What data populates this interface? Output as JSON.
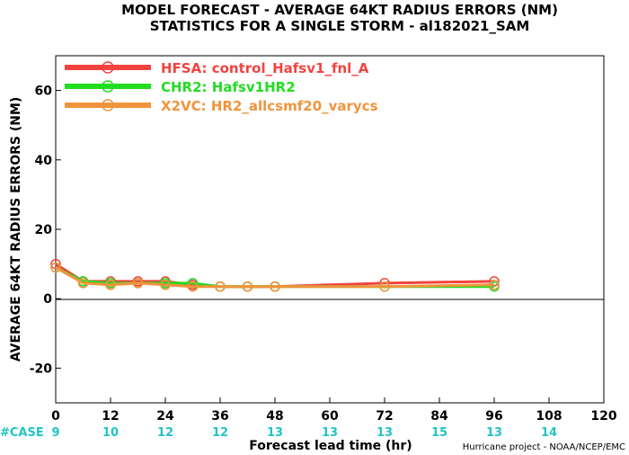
{
  "chart_data": {
    "type": "line",
    "title_lines": [
      "MODEL FORECAST - AVERAGE 64KT RADIUS ERRORS (NM)",
      "STATISTICS FOR A SINGLE STORM - al182021_SAM"
    ],
    "xlabel": "Forecast lead time (hr)",
    "ylabel": "AVERAGE 64KT RADIUS ERRORS (NM)",
    "xlim": [
      0,
      120
    ],
    "ylim": [
      -30,
      70
    ],
    "x_ticks": [
      0,
      12,
      24,
      36,
      48,
      60,
      72,
      84,
      96,
      108,
      120
    ],
    "y_ticks": [
      -20,
      0,
      20,
      40,
      60
    ],
    "zero_line": true,
    "legend_position": "top-left",
    "series": [
      {
        "name": "HFSA: control_Hafsv1_fnl_A",
        "color": "#f2433f",
        "x": [
          0,
          6,
          12,
          18,
          24,
          30,
          36,
          42,
          48,
          72,
          96
        ],
        "y": [
          10.0,
          5.0,
          5.0,
          5.0,
          5.0,
          4.0,
          3.5,
          3.5,
          3.5,
          4.5,
          5.0
        ]
      },
      {
        "name": "CHR2: Hafsv1HR2",
        "color": "#22dd22",
        "x": [
          0,
          6,
          12,
          18,
          24,
          30,
          36,
          42,
          48,
          72,
          96
        ],
        "y": [
          9.0,
          5.0,
          4.5,
          4.5,
          4.5,
          4.5,
          3.5,
          3.5,
          3.5,
          3.5,
          3.5
        ]
      },
      {
        "name": "X2VC: HR2_allcsmf20_varycs",
        "color": "#f0943c",
        "x": [
          0,
          6,
          12,
          18,
          24,
          30,
          36,
          42,
          48,
          72,
          96
        ],
        "y": [
          9.0,
          4.5,
          4.0,
          4.5,
          4.0,
          3.5,
          3.5,
          3.5,
          3.5,
          3.5,
          4.0
        ]
      }
    ],
    "case_label": "#CASE",
    "case_color": "#22c4c4",
    "case_counts": [
      {
        "x": 0,
        "n": "9"
      },
      {
        "x": 12,
        "n": "10"
      },
      {
        "x": 24,
        "n": "12"
      },
      {
        "x": 36,
        "n": "12"
      },
      {
        "x": 48,
        "n": "13"
      },
      {
        "x": 60,
        "n": "13"
      },
      {
        "x": 72,
        "n": "13"
      },
      {
        "x": 84,
        "n": "15"
      },
      {
        "x": 96,
        "n": "13"
      },
      {
        "x": 108,
        "n": "14"
      }
    ],
    "credit": "Hurricane project - NOAA/NCEP/EMC"
  }
}
